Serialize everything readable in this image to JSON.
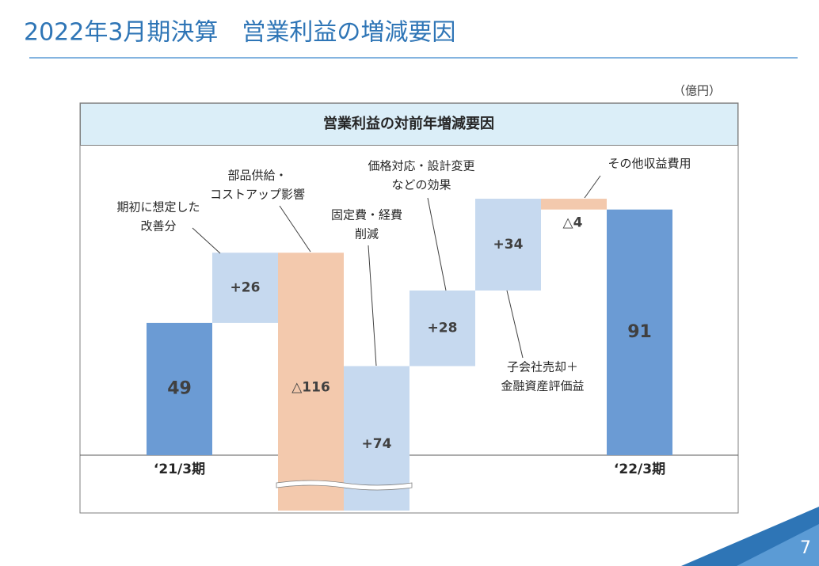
{
  "chart_data": {
    "type": "waterfall",
    "title": "2022年3月期決算　営業利益の増減要因",
    "unit": "（億円）",
    "subtitle": "営業利益の対前年増減要因",
    "page_number": "7",
    "categories": [
      "‘21/3期",
      null,
      null,
      null,
      null,
      null,
      null,
      "‘22/3期"
    ],
    "values": [
      49,
      26,
      -116,
      74,
      28,
      34,
      -4,
      91
    ],
    "value_labels": [
      "49",
      "+26",
      "△116",
      "+74",
      "+28",
      "+34",
      "△4",
      "91"
    ],
    "colors": [
      "#6b9bd4",
      "#c6d9ef",
      "#f3c9ad",
      "#c6d9ef",
      "#c6d9ef",
      "#c6d9ef",
      "#f3c9ad",
      "#6b9bd4"
    ],
    "annotations": [
      [
        "期初に想定した",
        "改善分"
      ],
      [
        "部品供給・",
        "コストアップ影響"
      ],
      [
        "固定費・経費",
        "削減"
      ],
      [
        "価格対応・設計変更",
        "などの効果"
      ],
      [
        "その他収益費用"
      ],
      [
        "子会社売却＋",
        "金融資産評価益"
      ]
    ]
  }
}
